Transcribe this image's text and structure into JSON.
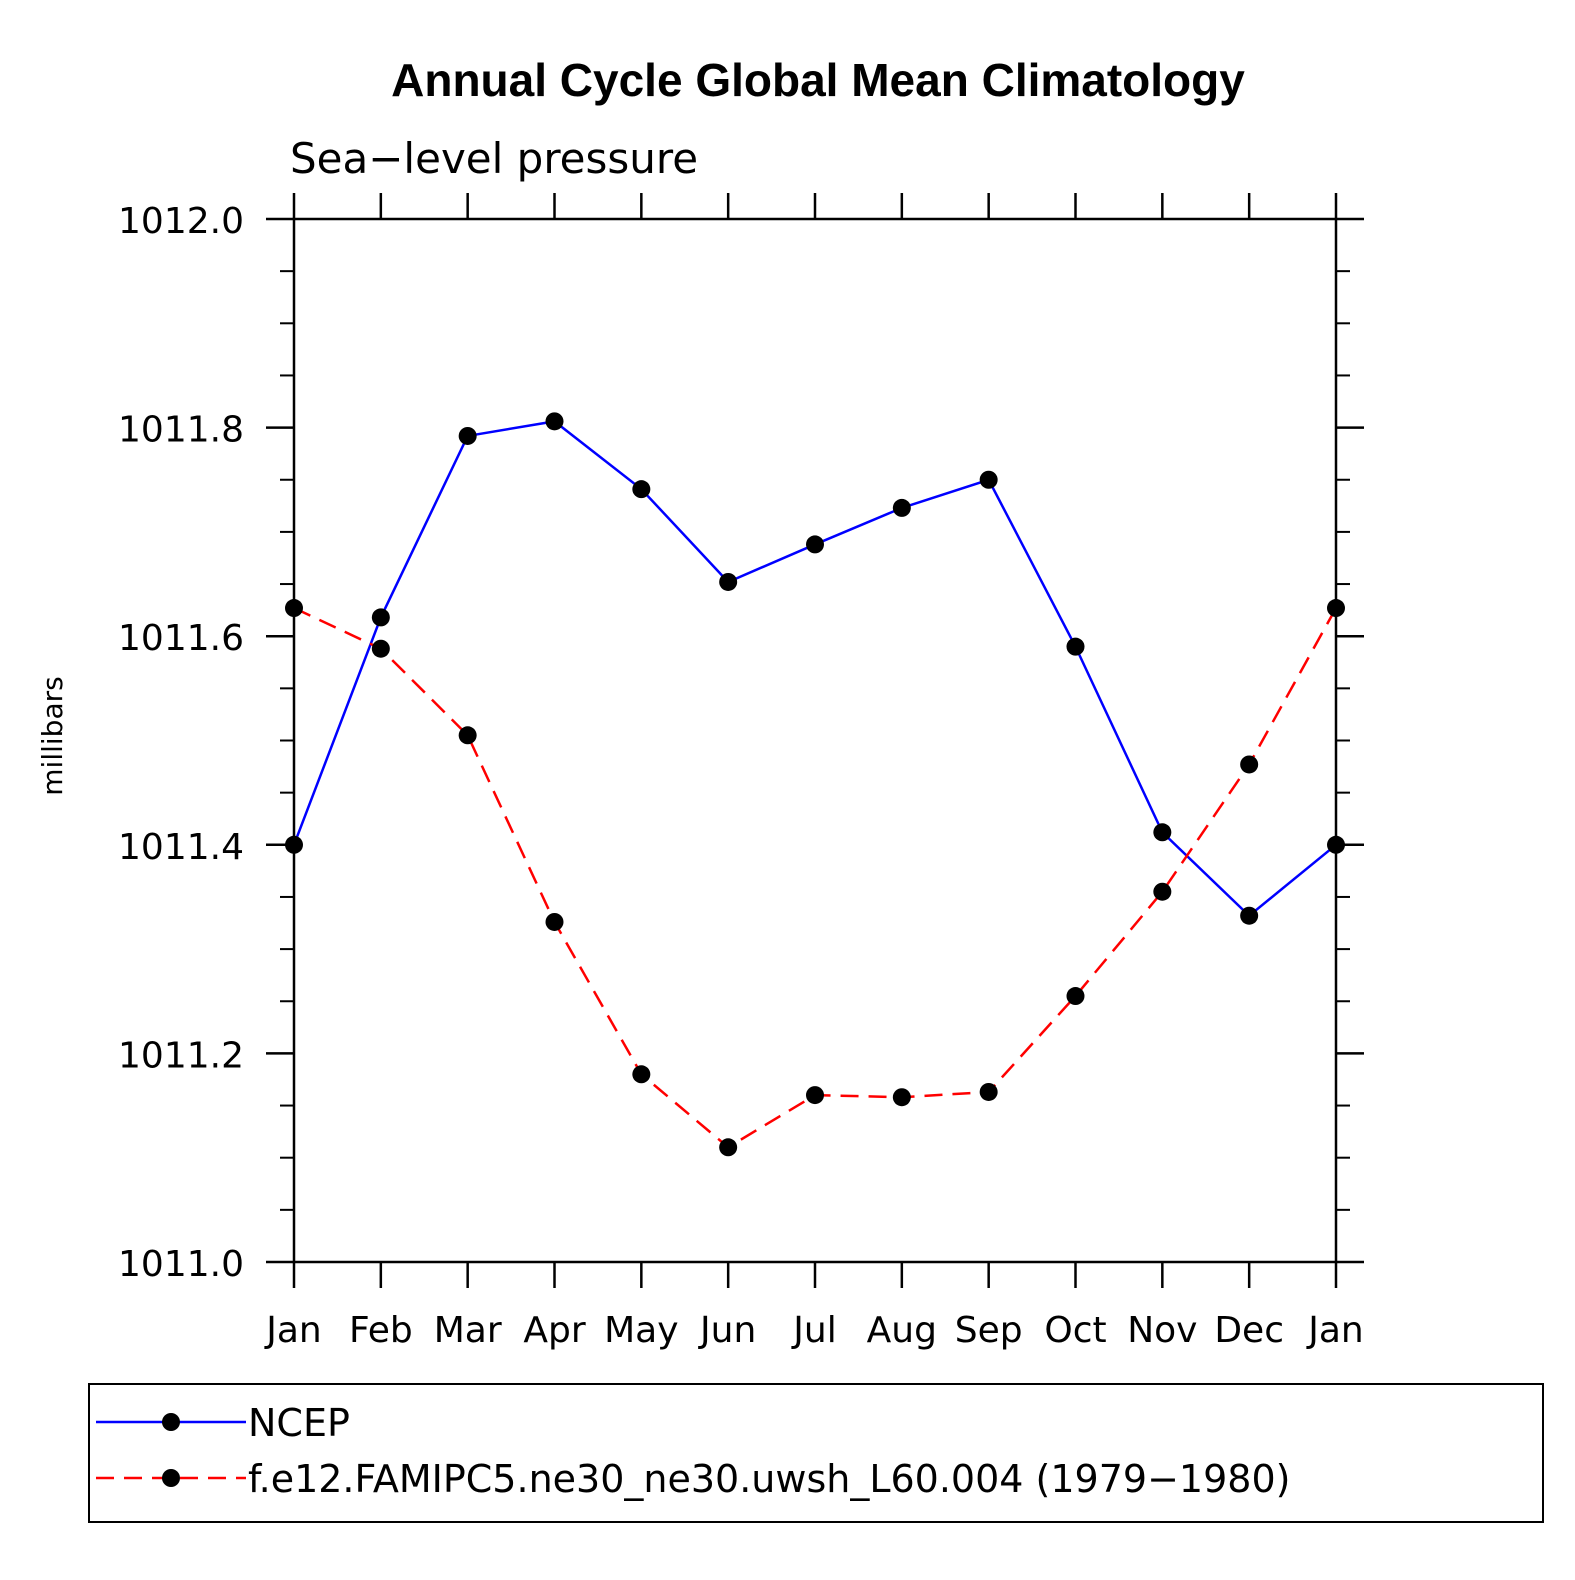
{
  "chart_data": {
    "type": "line",
    "title": "Annual Cycle Global Mean Climatology",
    "subtitle": "Sea−level pressure",
    "xlabel": "",
    "ylabel": "millibars",
    "categories": [
      "Jan",
      "Feb",
      "Mar",
      "Apr",
      "May",
      "Jun",
      "Jul",
      "Aug",
      "Sep",
      "Oct",
      "Nov",
      "Dec",
      "Jan"
    ],
    "ylim": [
      1011.0,
      1012.0
    ],
    "yticks": [
      "1011.0",
      "1011.2",
      "1011.4",
      "1011.6",
      "1011.8",
      "1012.0"
    ],
    "grid": false,
    "legend_position": "bottom",
    "series": [
      {
        "name": "NCEP",
        "color": "#0000ff",
        "dash": "solid",
        "values": [
          1011.4,
          1011.618,
          1011.792,
          1011.806,
          1011.741,
          1011.652,
          1011.688,
          1011.723,
          1011.75,
          1011.59,
          1011.412,
          1011.332,
          1011.4
        ]
      },
      {
        "name": "f.e12.FAMIPC5.ne30_ne30.uwsh_L60.004 (1979−1980)",
        "color": "#ff0000",
        "dash": "dashed",
        "values": [
          1011.627,
          1011.588,
          1011.505,
          1011.326,
          1011.18,
          1011.11,
          1011.16,
          1011.158,
          1011.163,
          1011.255,
          1011.355,
          1011.477,
          1011.627
        ]
      }
    ]
  }
}
